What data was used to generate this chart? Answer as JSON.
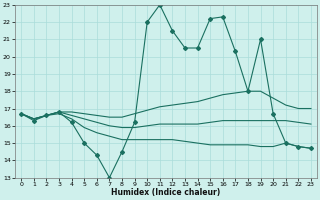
{
  "xlabel": "Humidex (Indice chaleur)",
  "background_color": "#cff0ec",
  "line_color": "#1a7060",
  "grid_color": "#aaddda",
  "xlim": [
    -0.5,
    23.5
  ],
  "ylim": [
    13,
    23
  ],
  "yticks": [
    13,
    14,
    15,
    16,
    17,
    18,
    19,
    20,
    21,
    22,
    23
  ],
  "xticks": [
    0,
    1,
    2,
    3,
    4,
    5,
    6,
    7,
    8,
    9,
    10,
    11,
    12,
    13,
    14,
    15,
    16,
    17,
    18,
    19,
    20,
    21,
    22,
    23
  ],
  "line1_x": [
    0,
    1,
    2,
    3,
    4,
    5,
    6,
    7,
    8,
    9,
    10,
    11,
    12,
    13,
    14,
    15,
    16,
    17,
    18,
    19,
    20,
    21,
    22,
    23
  ],
  "line1_y": [
    16.7,
    16.3,
    16.6,
    16.8,
    16.2,
    15.0,
    14.3,
    13.0,
    14.5,
    16.2,
    22.0,
    23.0,
    21.5,
    20.5,
    20.5,
    22.2,
    22.3,
    20.3,
    18.0,
    21.0,
    16.7,
    15.0,
    14.8,
    14.7
  ],
  "line2_x": [
    0,
    1,
    2,
    3,
    4,
    5,
    6,
    7,
    8,
    9,
    10,
    11,
    12,
    13,
    14,
    15,
    16,
    17,
    18,
    19,
    20,
    21,
    22,
    23
  ],
  "line2_y": [
    16.7,
    16.4,
    16.6,
    16.8,
    16.8,
    16.7,
    16.6,
    16.5,
    16.5,
    16.7,
    16.9,
    17.1,
    17.2,
    17.3,
    17.4,
    17.6,
    17.8,
    17.9,
    18.0,
    18.0,
    17.6,
    17.2,
    17.0,
    17.0
  ],
  "line3_x": [
    0,
    1,
    2,
    3,
    4,
    5,
    6,
    7,
    8,
    9,
    10,
    11,
    12,
    13,
    14,
    15,
    16,
    17,
    18,
    19,
    20,
    21,
    22,
    23
  ],
  "line3_y": [
    16.7,
    16.4,
    16.6,
    16.7,
    16.4,
    15.9,
    15.6,
    15.4,
    15.2,
    15.2,
    15.2,
    15.2,
    15.2,
    15.1,
    15.0,
    14.9,
    14.9,
    14.9,
    14.9,
    14.8,
    14.8,
    15.0,
    14.8,
    14.7
  ],
  "line4_x": [
    0,
    1,
    2,
    3,
    4,
    5,
    6,
    7,
    8,
    9,
    10,
    11,
    12,
    13,
    14,
    15,
    16,
    17,
    18,
    19,
    20,
    21,
    22,
    23
  ],
  "line4_y": [
    16.7,
    16.4,
    16.6,
    16.8,
    16.6,
    16.4,
    16.2,
    16.0,
    15.9,
    15.9,
    16.0,
    16.1,
    16.1,
    16.1,
    16.1,
    16.2,
    16.3,
    16.3,
    16.3,
    16.3,
    16.3,
    16.3,
    16.2,
    16.1
  ]
}
